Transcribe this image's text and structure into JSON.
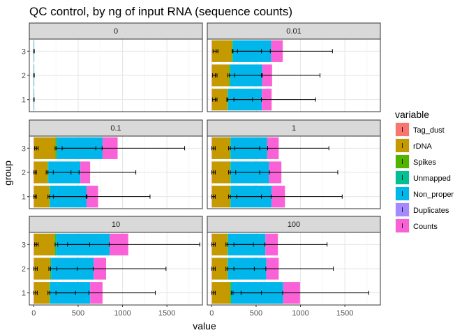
{
  "chart_data": {
    "type": "bar",
    "orientation": "horizontal",
    "stacked": true,
    "title": "QC control, by ng of input RNA (sequence counts)",
    "xlabel": "value",
    "ylabel": "group",
    "xlim": [
      -50,
      1900
    ],
    "x_ticks": [
      0,
      500,
      1000,
      1500
    ],
    "groups": [
      "1",
      "2",
      "3"
    ],
    "grid": true,
    "legend": {
      "title": "variable",
      "position": "right",
      "entries": [
        {
          "name": "Tag_dust",
          "color": "#F8766D"
        },
        {
          "name": "rDNA",
          "color": "#C49A00"
        },
        {
          "name": "Spikes",
          "color": "#53B400"
        },
        {
          "name": "Unmapped",
          "color": "#00C094"
        },
        {
          "name": "Non_proper",
          "color": "#00B6EB"
        },
        {
          "name": "Duplicates",
          "color": "#A58AFF"
        },
        {
          "name": "Counts",
          "color": "#FB61D7"
        }
      ]
    },
    "panels": [
      {
        "label": "0",
        "bars": [
          {
            "group": "1",
            "values": [
              1,
              0,
              0,
              1,
              3,
              0,
              0
            ],
            "errors": [
              {
                "variable": "Non_proper",
                "center": 2,
                "low": 0,
                "high": 5
              }
            ]
          },
          {
            "group": "2",
            "values": [
              1,
              0,
              0,
              1,
              4,
              0,
              0
            ],
            "errors": [
              {
                "variable": "Non_proper",
                "center": 3,
                "low": 0,
                "high": 6
              }
            ]
          },
          {
            "group": "3",
            "values": [
              1,
              0,
              0,
              1,
              4,
              0,
              0
            ],
            "errors": [
              {
                "variable": "Non_proper",
                "center": 3,
                "low": 0,
                "high": 6
              }
            ]
          }
        ]
      },
      {
        "label": "0.01",
        "bars": [
          {
            "group": "1",
            "values": [
              5,
              170,
              5,
              5,
              380,
              0,
              110
            ],
            "errors": [
              {
                "variable": "rDNA",
                "center": 40,
                "low": 10,
                "high": 60
              },
              {
                "variable": "Non_proper",
                "center": 180,
                "low": 170,
                "high": 460
              },
              {
                "variable": "Counts",
                "center": 560,
                "low": 250,
                "high": 1170
              }
            ]
          },
          {
            "group": "2",
            "values": [
              5,
              190,
              10,
              5,
              360,
              0,
              110
            ],
            "errors": [
              {
                "variable": "rDNA",
                "center": 40,
                "low": 10,
                "high": 60
              },
              {
                "variable": "Non_proper",
                "center": 200,
                "low": 180,
                "high": 570
              },
              {
                "variable": "Counts",
                "center": 560,
                "low": 260,
                "high": 1220
              }
            ]
          },
          {
            "group": "3",
            "values": [
              5,
              220,
              10,
              5,
              430,
              0,
              130
            ],
            "errors": [
              {
                "variable": "rDNA",
                "center": 50,
                "low": 15,
                "high": 70
              },
              {
                "variable": "Non_proper",
                "center": 240,
                "low": 230,
                "high": 560
              },
              {
                "variable": "Counts",
                "center": 660,
                "low": 290,
                "high": 1360
              }
            ]
          }
        ]
      },
      {
        "label": "0.1",
        "bars": [
          {
            "group": "1",
            "values": [
              5,
              170,
              5,
              5,
              410,
              0,
              130
            ],
            "errors": [
              {
                "variable": "rDNA",
                "center": 15,
                "low": 0,
                "high": 30
              },
              {
                "variable": "Non_proper",
                "center": 180,
                "low": 160,
                "high": 600
              },
              {
                "variable": "Counts",
                "center": 590,
                "low": 220,
                "high": 1310
              }
            ]
          },
          {
            "group": "2",
            "values": [
              5,
              150,
              5,
              5,
              360,
              0,
              110
            ],
            "errors": [
              {
                "variable": "rDNA",
                "center": 15,
                "low": 0,
                "high": 30
              },
              {
                "variable": "Non_proper",
                "center": 160,
                "low": 140,
                "high": 420
              },
              {
                "variable": "Counts",
                "center": 510,
                "low": 220,
                "high": 1150
              }
            ]
          },
          {
            "group": "3",
            "values": [
              5,
              240,
              10,
              10,
              510,
              0,
              170
            ],
            "errors": [
              {
                "variable": "rDNA",
                "center": 30,
                "low": 10,
                "high": 50
              },
              {
                "variable": "Non_proper",
                "center": 260,
                "low": 240,
                "high": 700
              },
              {
                "variable": "Counts",
                "center": 770,
                "low": 320,
                "high": 1700
              }
            ]
          }
        ]
      },
      {
        "label": "1",
        "bars": [
          {
            "group": "1",
            "values": [
              5,
              200,
              5,
              5,
              460,
              0,
              150
            ],
            "errors": [
              {
                "variable": "rDNA",
                "center": 20,
                "low": 0,
                "high": 40
              },
              {
                "variable": "Non_proper",
                "center": 210,
                "low": 190,
                "high": 560
              },
              {
                "variable": "Counts",
                "center": 670,
                "low": 280,
                "high": 1470
              }
            ]
          },
          {
            "group": "2",
            "values": [
              5,
              200,
              5,
              5,
              430,
              0,
              140
            ],
            "errors": [
              {
                "variable": "rDNA",
                "center": 20,
                "low": 0,
                "high": 40
              },
              {
                "variable": "Non_proper",
                "center": 210,
                "low": 190,
                "high": 540
              },
              {
                "variable": "Counts",
                "center": 650,
                "low": 270,
                "high": 1420
              }
            ]
          },
          {
            "group": "3",
            "values": [
              5,
              200,
              5,
              5,
              410,
              0,
              130
            ],
            "errors": [
              {
                "variable": "rDNA",
                "center": 20,
                "low": 0,
                "high": 40
              },
              {
                "variable": "Non_proper",
                "center": 210,
                "low": 190,
                "high": 540
              },
              {
                "variable": "Counts",
                "center": 630,
                "low": 260,
                "high": 1320
              }
            ]
          }
        ]
      },
      {
        "label": "10",
        "bars": [
          {
            "group": "1",
            "values": [
              5,
              170,
              5,
              5,
              450,
              0,
              140
            ],
            "errors": [
              {
                "variable": "rDNA",
                "center": 20,
                "low": 0,
                "high": 40
              },
              {
                "variable": "Non_proper",
                "center": 180,
                "low": 160,
                "high": 470
              },
              {
                "variable": "Counts",
                "center": 620,
                "low": 250,
                "high": 1370
              }
            ]
          },
          {
            "group": "2",
            "values": [
              5,
              180,
              5,
              5,
              480,
              0,
              140
            ],
            "errors": [
              {
                "variable": "rDNA",
                "center": 20,
                "low": 0,
                "high": 40
              },
              {
                "variable": "Non_proper",
                "center": 190,
                "low": 170,
                "high": 490
              },
              {
                "variable": "Counts",
                "center": 670,
                "low": 260,
                "high": 1490
              }
            ]
          },
          {
            "group": "3",
            "values": [
              5,
              230,
              10,
              10,
              600,
              0,
              210
            ],
            "errors": [
              {
                "variable": "rDNA",
                "center": 30,
                "low": 10,
                "high": 50
              },
              {
                "variable": "Non_proper",
                "center": 270,
                "low": 240,
                "high": 630
              },
              {
                "variable": "Counts",
                "center": 850,
                "low": 380,
                "high": 1870
              }
            ]
          }
        ]
      },
      {
        "label": "100",
        "bars": [
          {
            "group": "1",
            "values": [
              5,
              200,
              10,
              10,
              580,
              0,
              190
            ],
            "errors": [
              {
                "variable": "rDNA",
                "center": 20,
                "low": 0,
                "high": 40
              },
              {
                "variable": "Non_proper",
                "center": 240,
                "low": 220,
                "high": 560
              },
              {
                "variable": "Counts",
                "center": 800,
                "low": 330,
                "high": 1770
              }
            ]
          },
          {
            "group": "2",
            "values": [
              5,
              170,
              5,
              5,
              430,
              0,
              140
            ],
            "errors": [
              {
                "variable": "rDNA",
                "center": 20,
                "low": 0,
                "high": 40
              },
              {
                "variable": "Non_proper",
                "center": 180,
                "low": 160,
                "high": 480
              },
              {
                "variable": "Counts",
                "center": 610,
                "low": 250,
                "high": 1370
              }
            ]
          },
          {
            "group": "3",
            "values": [
              5,
              170,
              5,
              5,
              420,
              0,
              140
            ],
            "errors": [
              {
                "variable": "rDNA",
                "center": 20,
                "low": 0,
                "high": 40
              },
              {
                "variable": "Non_proper",
                "center": 180,
                "low": 160,
                "high": 470
              },
              {
                "variable": "Counts",
                "center": 600,
                "low": 250,
                "high": 1300
              }
            ]
          }
        ]
      }
    ]
  }
}
